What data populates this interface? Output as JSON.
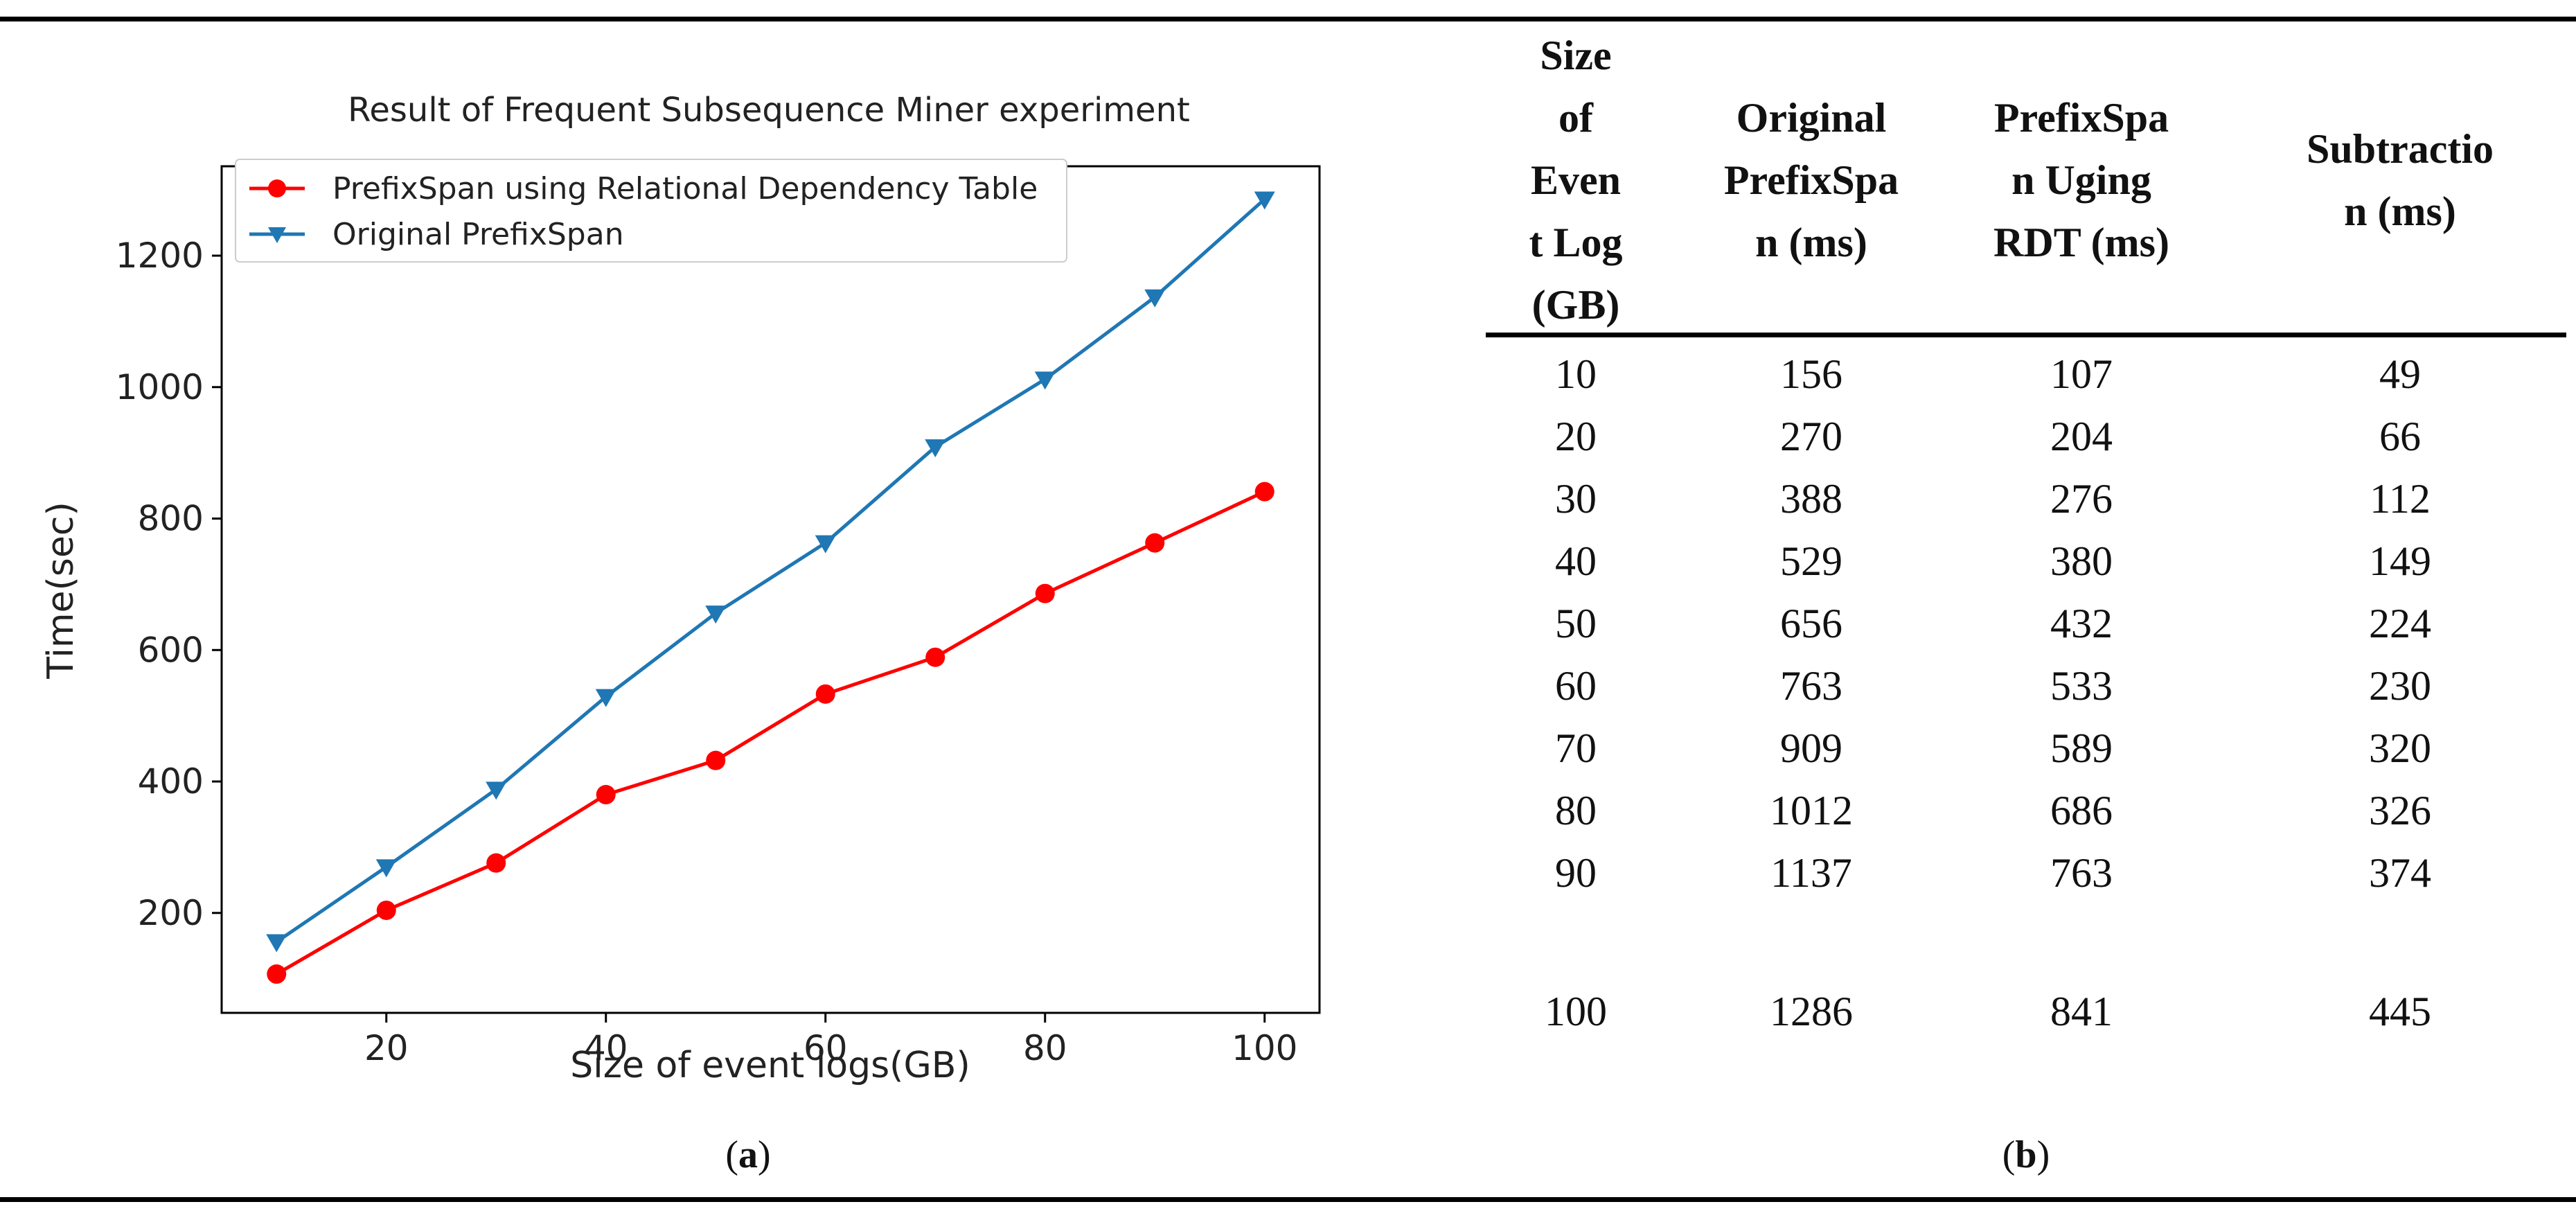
{
  "chart_data": {
    "type": "line",
    "title": "Result of Frequent Subsequence Miner experiment",
    "xlabel": "Size of event logs(GB)",
    "ylabel": "Time(sec)",
    "x": [
      10,
      20,
      30,
      40,
      50,
      60,
      70,
      80,
      90,
      100
    ],
    "xlim": [
      5,
      105
    ],
    "ylim": [
      48,
      1336
    ],
    "xticks": [
      20,
      40,
      60,
      80,
      100
    ],
    "yticks": [
      200,
      400,
      600,
      800,
      1000,
      1200
    ],
    "grid": false,
    "legend_position": "top-left",
    "series": [
      {
        "name": "PrefixSpan using Relational Dependency Table",
        "color": "#ff0000",
        "marker": "circle",
        "values": [
          107,
          204,
          276,
          380,
          432,
          533,
          589,
          686,
          763,
          841
        ]
      },
      {
        "name": "Original PrefixSpan",
        "color": "#1f77b4",
        "marker": "triangle-down",
        "values": [
          156,
          270,
          388,
          529,
          656,
          763,
          909,
          1012,
          1137,
          1286
        ]
      }
    ]
  },
  "captions": {
    "a": "a",
    "b": "b"
  },
  "table": {
    "headers": [
      [
        "Size",
        "of",
        "Even",
        "t Log",
        "(GB)"
      ],
      [
        "Original",
        "PrefixSpa",
        "n (ms)"
      ],
      [
        "PrefixSpa",
        "n Uging",
        "RDT (ms)"
      ],
      [
        "Subtractio",
        "n (ms)"
      ]
    ],
    "rows": [
      [
        "10",
        "156",
        "107",
        "49"
      ],
      [
        "20",
        "270",
        "204",
        "66"
      ],
      [
        "30",
        "388",
        "276",
        "112"
      ],
      [
        "40",
        "529",
        "380",
        "149"
      ],
      [
        "50",
        "656",
        "432",
        "224"
      ],
      [
        "60",
        "763",
        "533",
        "230"
      ],
      [
        "70",
        "909",
        "589",
        "320"
      ],
      [
        "80",
        "1012",
        "686",
        "326"
      ],
      [
        "90",
        "1137",
        "763",
        "374"
      ],
      [
        "100",
        "1286",
        "841",
        "445"
      ]
    ]
  }
}
